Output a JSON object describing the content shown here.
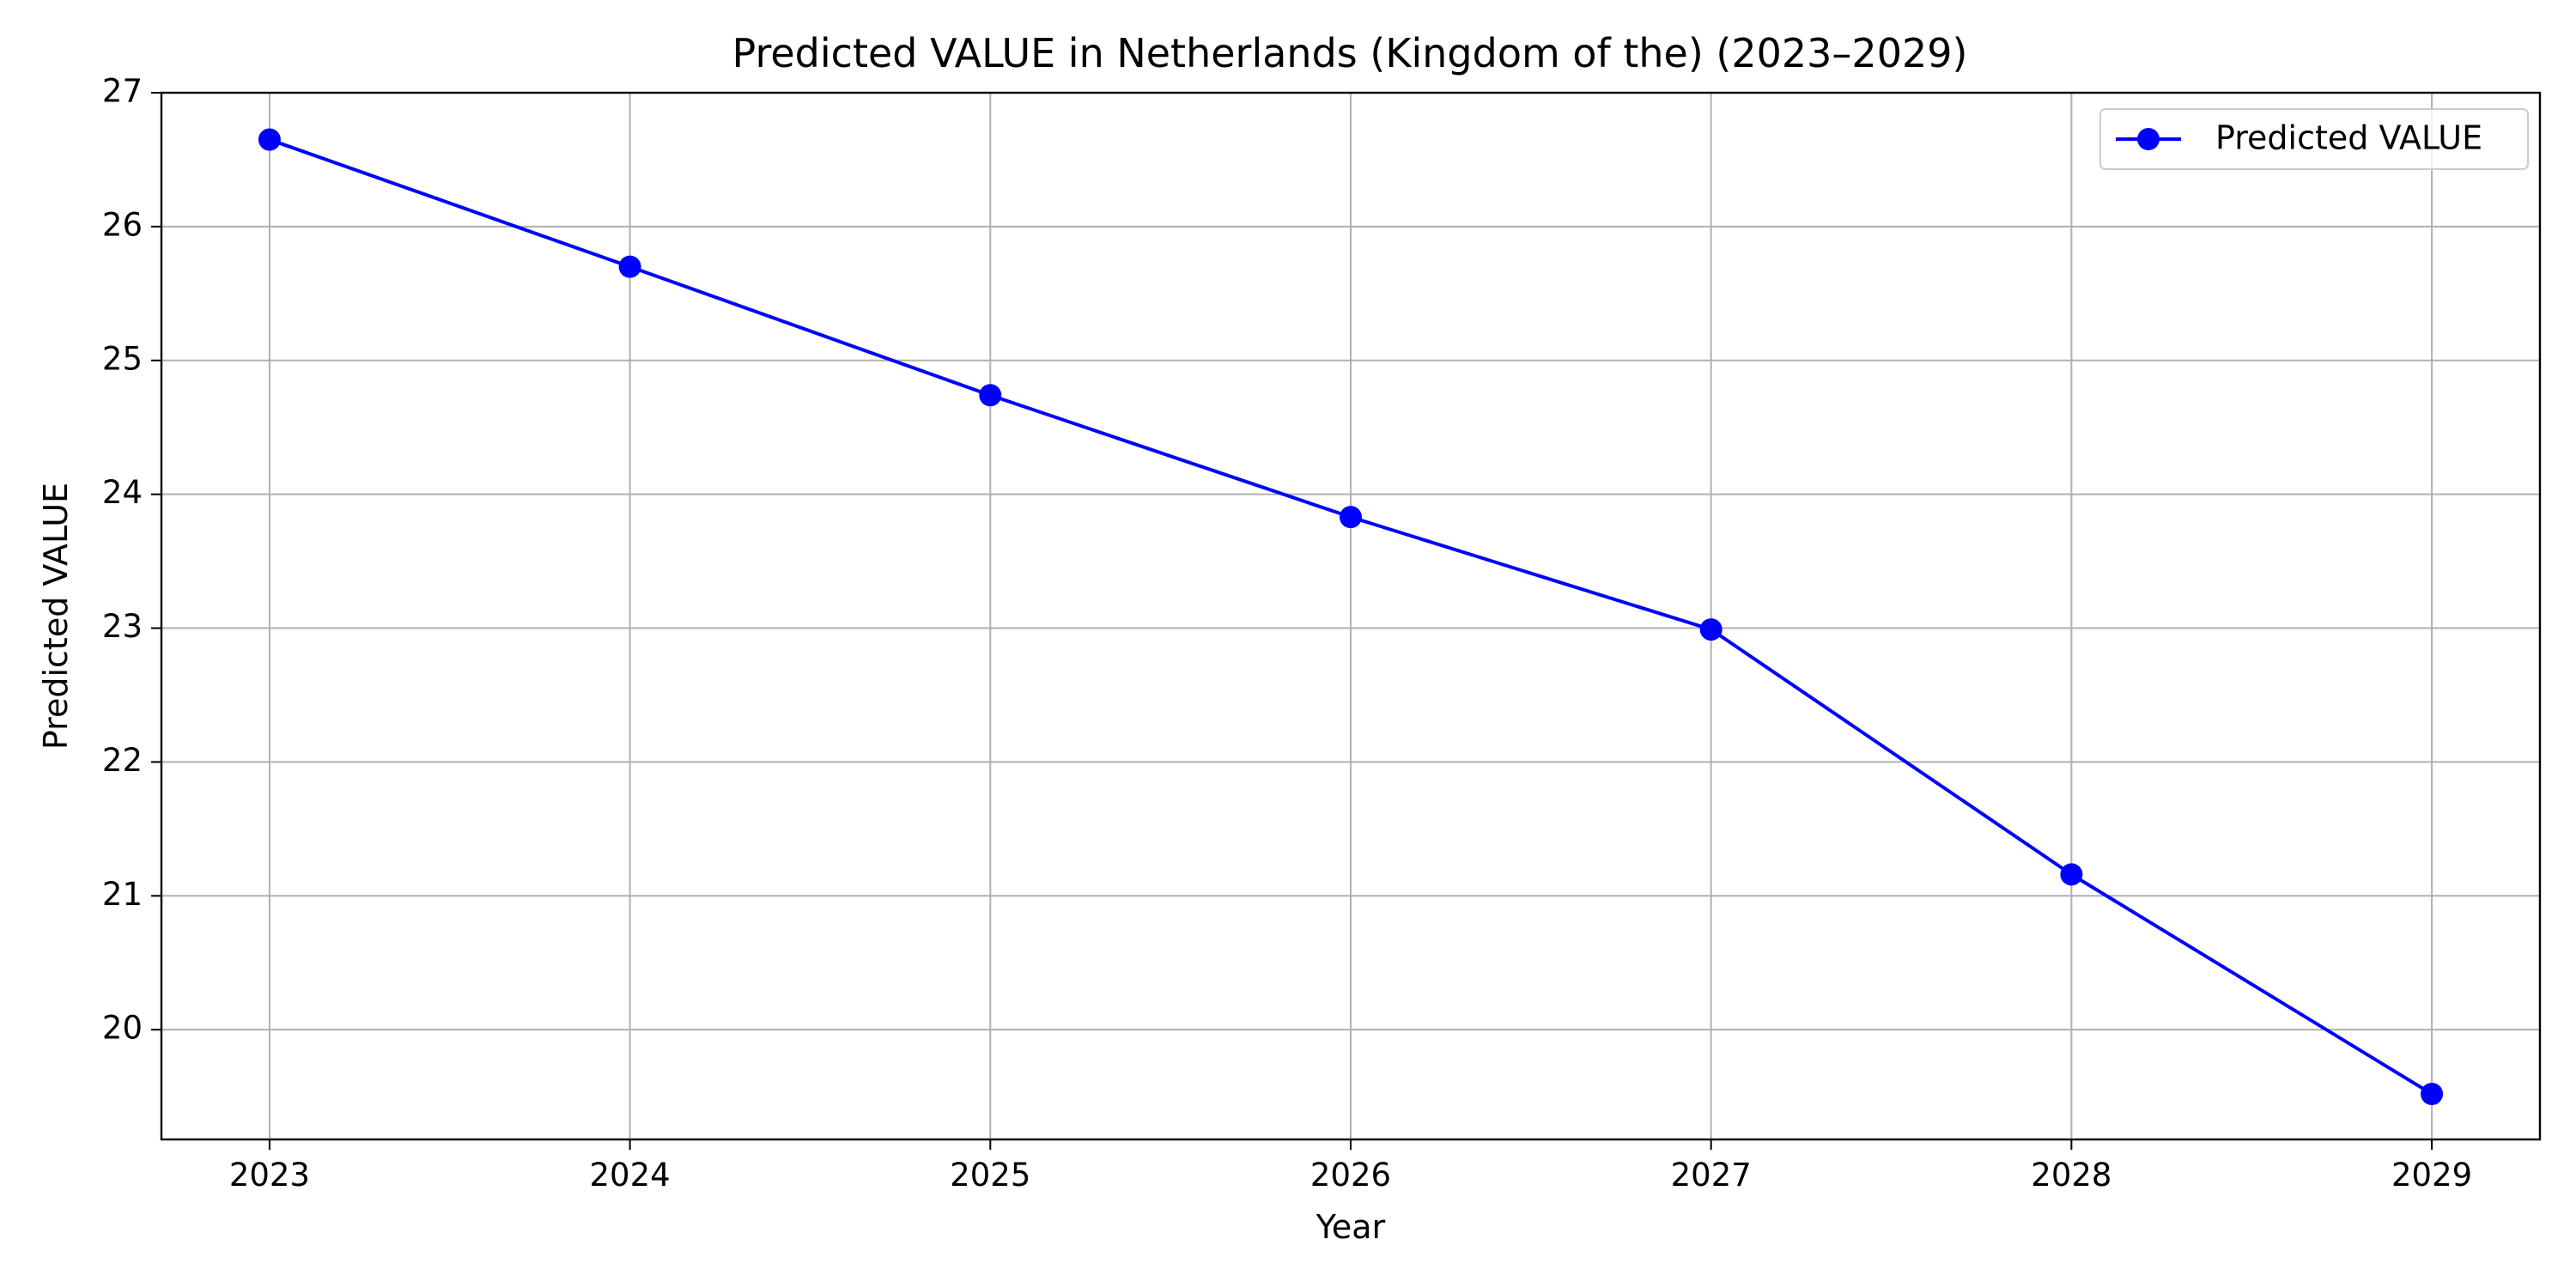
{
  "chart_data": {
    "type": "line",
    "title": "Predicted VALUE in Netherlands (Kingdom of the) (2023–2029)",
    "xlabel": "Year",
    "ylabel": "Predicted VALUE",
    "x": [
      2023,
      2024,
      2025,
      2026,
      2027,
      2028,
      2029
    ],
    "x_tick_labels": [
      "2023",
      "2024",
      "2025",
      "2026",
      "2027",
      "2028",
      "2029"
    ],
    "y_ticks": [
      20,
      21,
      22,
      23,
      24,
      25,
      26,
      27
    ],
    "y_tick_labels": [
      "20",
      "21",
      "22",
      "23",
      "24",
      "25",
      "26",
      "27"
    ],
    "xlim": [
      2022.7,
      2029.3
    ],
    "ylim": [
      19.18,
      27.0
    ],
    "grid": true,
    "legend_position": "top-right",
    "series": [
      {
        "name": "Predicted VALUE",
        "color": "#0000ff",
        "marker": "circle",
        "values": [
          26.65,
          25.7,
          24.74,
          23.83,
          22.99,
          21.16,
          19.52
        ]
      }
    ]
  }
}
